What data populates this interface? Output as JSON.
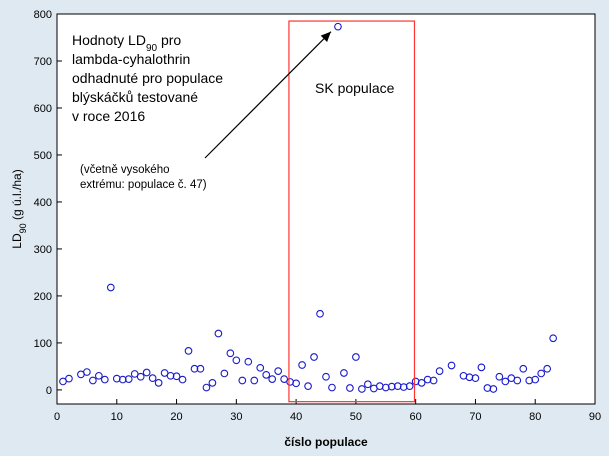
{
  "chart_data": {
    "type": "scatter",
    "title": "",
    "xlabel": "číslo populace",
    "ylabel": "LD90 (g ú.l./ha)",
    "ylabel_parts": [
      "LD",
      "90",
      " (g ú.l./ha)"
    ],
    "xlim": [
      0,
      90
    ],
    "ylim": [
      -30,
      800
    ],
    "x_ticks": [
      0,
      10,
      20,
      30,
      40,
      50,
      60,
      70,
      80,
      90
    ],
    "y_ticks": [
      0,
      100,
      200,
      300,
      400,
      500,
      600,
      700,
      800
    ],
    "grid": false,
    "marker": "open-circle",
    "marker_color": "#1a1acc",
    "points": [
      [
        1,
        18
      ],
      [
        2,
        24
      ],
      [
        4,
        33
      ],
      [
        5,
        38
      ],
      [
        6,
        20
      ],
      [
        7,
        30
      ],
      [
        8,
        22
      ],
      [
        9,
        218
      ],
      [
        10,
        24
      ],
      [
        11,
        22
      ],
      [
        12,
        23
      ],
      [
        13,
        34
      ],
      [
        14,
        28
      ],
      [
        15,
        37
      ],
      [
        16,
        25
      ],
      [
        17,
        15
      ],
      [
        18,
        36
      ],
      [
        19,
        30
      ],
      [
        20,
        29
      ],
      [
        21,
        22
      ],
      [
        22,
        83
      ],
      [
        23,
        45
      ],
      [
        24,
        45
      ],
      [
        25,
        5
      ],
      [
        26,
        15
      ],
      [
        27,
        120
      ],
      [
        28,
        35
      ],
      [
        29,
        78
      ],
      [
        30,
        63
      ],
      [
        31,
        20
      ],
      [
        32,
        60
      ],
      [
        33,
        20
      ],
      [
        34,
        47
      ],
      [
        35,
        32
      ],
      [
        36,
        23
      ],
      [
        37,
        40
      ],
      [
        38,
        23
      ],
      [
        39,
        17
      ],
      [
        40,
        14
      ],
      [
        41,
        53
      ],
      [
        42,
        8
      ],
      [
        43,
        70
      ],
      [
        44,
        162
      ],
      [
        45,
        28
      ],
      [
        46,
        5
      ],
      [
        47,
        773
      ],
      [
        48,
        36
      ],
      [
        49,
        4
      ],
      [
        50,
        70
      ],
      [
        51,
        2
      ],
      [
        52,
        12
      ],
      [
        53,
        3
      ],
      [
        54,
        8
      ],
      [
        55,
        5
      ],
      [
        56,
        7
      ],
      [
        57,
        8
      ],
      [
        58,
        6
      ],
      [
        59,
        8
      ],
      [
        60,
        18
      ],
      [
        61,
        15
      ],
      [
        62,
        22
      ],
      [
        63,
        20
      ],
      [
        64,
        40
      ],
      [
        66,
        52
      ],
      [
        68,
        30
      ],
      [
        69,
        27
      ],
      [
        70,
        25
      ],
      [
        71,
        48
      ],
      [
        72,
        4
      ],
      [
        73,
        2
      ],
      [
        74,
        28
      ],
      [
        75,
        18
      ],
      [
        76,
        25
      ],
      [
        77,
        20
      ],
      [
        78,
        45
      ],
      [
        79,
        20
      ],
      [
        80,
        22
      ],
      [
        81,
        35
      ],
      [
        82,
        45
      ],
      [
        83,
        110
      ]
    ],
    "highlight_box": {
      "x_range": [
        38.8,
        59.8
      ],
      "y_range": [
        -25,
        785
      ],
      "label": "SK populace",
      "color": "#ff3333"
    },
    "annotation": {
      "lines": [
        {
          "parts": [
            "Hodnoty LD",
            "90",
            " pro"
          ]
        },
        {
          "parts": [
            " lambda-cyhalothrin"
          ]
        },
        {
          "parts": [
            "odhadnuté pro populace"
          ]
        },
        {
          "parts": [
            "blýskáčků testované"
          ]
        },
        {
          "parts": [
            " v roce 2016"
          ]
        }
      ],
      "note_lines": [
        "(včetně vysokého",
        "extrému: populace č. 47)"
      ],
      "arrow_target_point": [
        47,
        773
      ]
    }
  }
}
